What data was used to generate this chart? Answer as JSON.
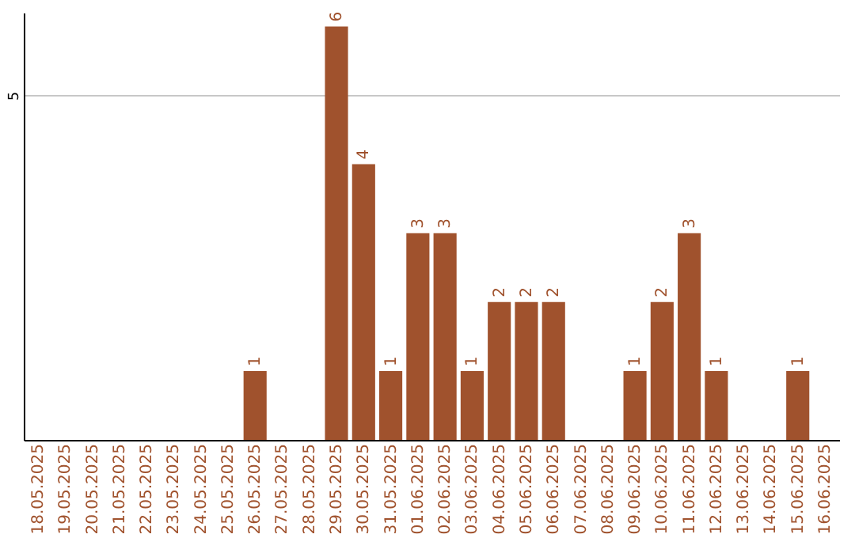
{
  "chart_data": {
    "type": "bar",
    "categories": [
      "18.05.2025",
      "19.05.2025",
      "20.05.2025",
      "21.05.2025",
      "22.05.2025",
      "23.05.2025",
      "24.05.2025",
      "25.05.2025",
      "26.05.2025",
      "27.05.2025",
      "28.05.2025",
      "29.05.2025",
      "30.05.2025",
      "31.05.2025",
      "01.06.2025",
      "02.06.2025",
      "03.06.2025",
      "04.06.2025",
      "05.06.2025",
      "06.06.2025",
      "07.06.2025",
      "08.06.2025",
      "09.06.2025",
      "10.06.2025",
      "11.06.2025",
      "12.06.2025",
      "13.06.2025",
      "14.06.2025",
      "15.06.2025",
      "16.06.2025"
    ],
    "values": [
      0,
      0,
      0,
      0,
      0,
      0,
      0,
      0,
      1,
      0,
      0,
      6,
      4,
      1,
      3,
      3,
      1,
      2,
      2,
      2,
      0,
      0,
      1,
      2,
      3,
      1,
      0,
      0,
      1,
      0
    ],
    "value_labels": [
      null,
      null,
      null,
      null,
      null,
      null,
      null,
      null,
      "1",
      null,
      null,
      "6",
      "4",
      "1",
      "3",
      "3",
      "1",
      "2",
      "2",
      "2",
      null,
      null,
      "1",
      "2",
      "3",
      "1",
      null,
      null,
      "1",
      null
    ],
    "color": "#a0522d",
    "ylim": [
      0,
      6.2
    ],
    "yticks": [
      5
    ],
    "grid": "y"
  }
}
